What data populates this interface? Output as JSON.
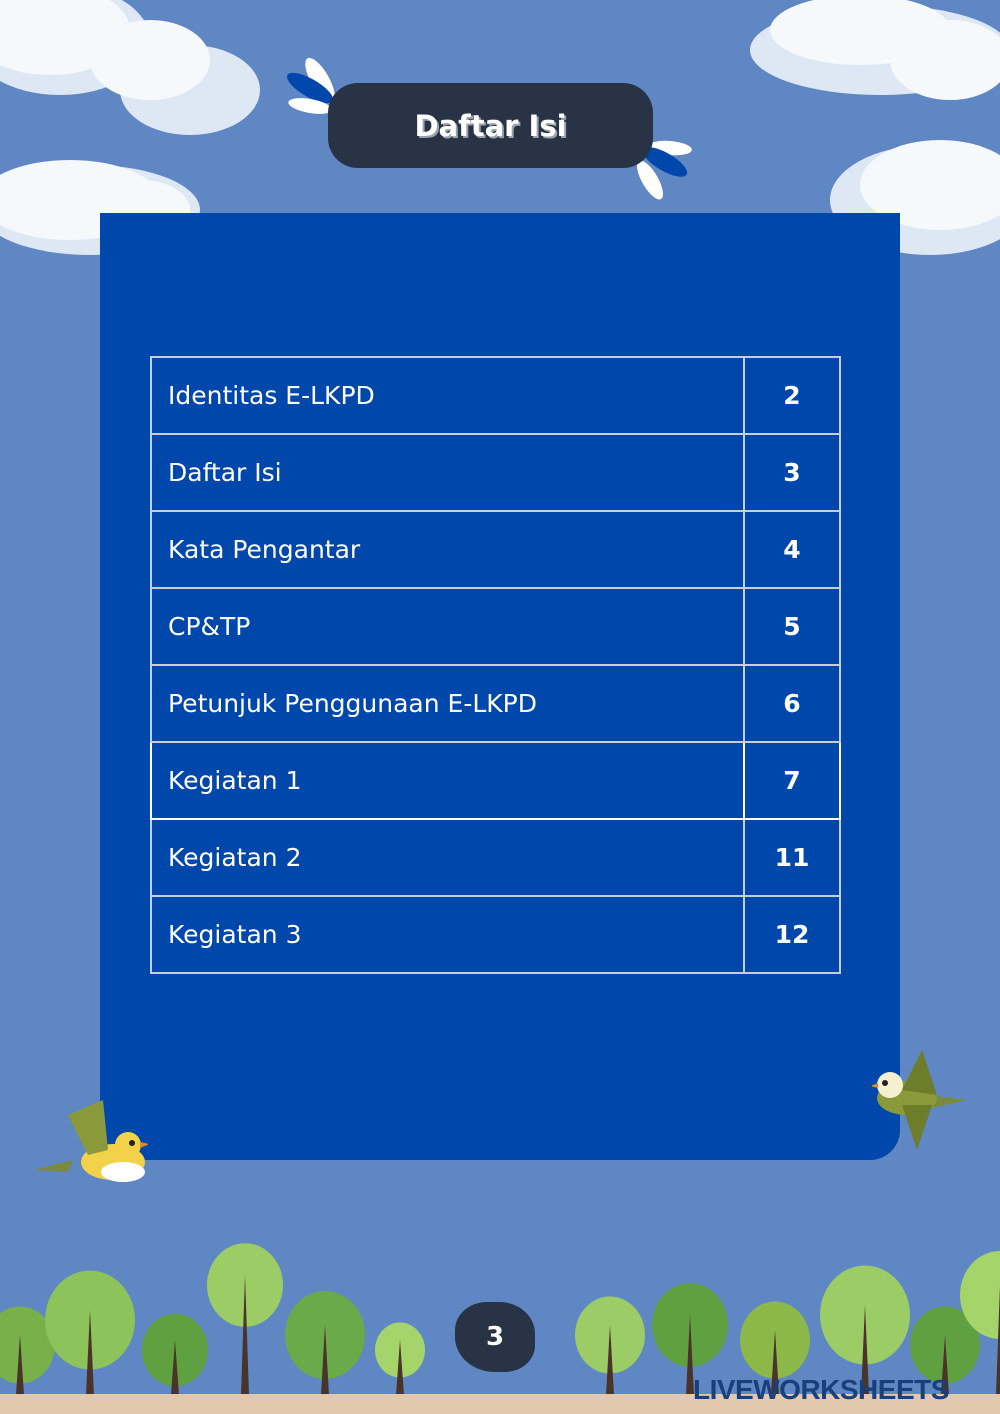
{
  "title": "Daftar Isi",
  "toc": [
    {
      "label": "Identitas E-LKPD",
      "page": "2"
    },
    {
      "label": "Daftar Isi",
      "page": "3"
    },
    {
      "label": "Kata Pengantar",
      "page": "4"
    },
    {
      "label": "CP&TP",
      "page": "5"
    },
    {
      "label": "Petunjuk Penggunaan E-LKPD",
      "page": "6"
    },
    {
      "label": "Kegiatan 1",
      "page": "7"
    },
    {
      "label": "Kegiatan 2",
      "page": "11"
    },
    {
      "label": "Kegiatan 3",
      "page": "12"
    }
  ],
  "page_number": "3",
  "watermark": "LIVEWORKSHEETS",
  "colors": {
    "background": "#5f87c4",
    "panel": "#0047ab",
    "title_pill": "#283445"
  }
}
